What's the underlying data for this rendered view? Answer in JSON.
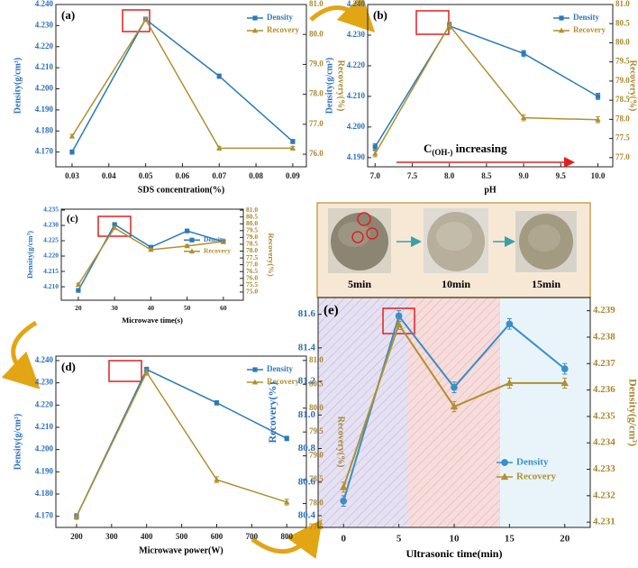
{
  "chart_data": [
    {
      "type": "line",
      "label": "(a)",
      "xlabel": "SDS concentration(%)",
      "ylabel": "Density(g/cm³)",
      "y2label": "Recovery(%)",
      "legend": "upper right",
      "ycolor": "#2a6ebb",
      "y2color": "#a8862c",
      "x": [
        0.03,
        0.05,
        0.07,
        0.09
      ],
      "xlim": [
        0.0256,
        0.0937
      ],
      "xticks": [
        0.03,
        0.04,
        0.05,
        0.06,
        0.07,
        0.08,
        0.09
      ],
      "ylim": [
        4.163,
        4.24
      ],
      "yticks": [
        {
          "value": 4.17,
          "label": "4.170"
        },
        {
          "value": 4.18,
          "label": "4.180"
        },
        {
          "value": 4.19,
          "label": "4.190"
        },
        {
          "value": 4.2,
          "label": "4.200"
        },
        {
          "value": 4.21,
          "label": "4.210"
        },
        {
          "value": 4.22,
          "label": "4.220"
        },
        {
          "value": 4.23,
          "label": "4.230"
        },
        {
          "value": 4.24,
          "label": "4.240"
        }
      ],
      "y2lim": [
        75.58,
        81.0
      ],
      "y2ticks": [
        {
          "value": 76,
          "label": "76.0"
        },
        {
          "value": 77,
          "label": "77.0"
        },
        {
          "value": 78,
          "label": "78.0"
        },
        {
          "value": 79,
          "label": "79.0"
        },
        {
          "value": 80,
          "label": "80.0"
        },
        {
          "value": 81,
          "label": "81.0"
        }
      ],
      "series": [
        {
          "name": "Density",
          "color": "#2a7ab9",
          "marker": "square",
          "values": [
            4.17,
            4.233,
            4.206,
            4.175
          ],
          "errors": [
            0.001,
            0.001,
            0.001,
            0.001
          ]
        },
        {
          "name": "Recovery",
          "color": "#b0902f",
          "marker": "triangle",
          "axis": "y2",
          "values": [
            76.6,
            80.5,
            76.2,
            76.2
          ],
          "errors": [
            0.06,
            0.06,
            0.06,
            0.06
          ]
        }
      ]
    },
    {
      "type": "line",
      "label": "(b)",
      "xlabel": "pH",
      "ylabel": "Density(g/cm³)",
      "y2label": "Recovery(%)",
      "legend": "upper right",
      "ycolor": "#2a6ebb",
      "y2color": "#a8862c",
      "annotation": {
        "base": "C",
        "subscript": "(OH-)",
        "text": " increasing"
      },
      "x": [
        7,
        8,
        9,
        10
      ],
      "xlim": [
        6.9,
        10.2
      ],
      "xticks": [
        {
          "value": 7,
          "label": "7.0"
        },
        7.5,
        {
          "value": 8,
          "label": "8.0"
        },
        8.5,
        {
          "value": 9,
          "label": "9.0"
        },
        9.5,
        {
          "value": 10,
          "label": "10.0"
        }
      ],
      "ylim": [
        4.187,
        4.24
      ],
      "yticks": [
        {
          "value": 4.19,
          "label": "4.190"
        },
        {
          "value": 4.2,
          "label": "4.200"
        },
        {
          "value": 4.21,
          "label": "4.210"
        },
        {
          "value": 4.22,
          "label": "4.220"
        },
        {
          "value": 4.23,
          "label": "4.230"
        },
        {
          "value": 4.24,
          "label": "4.240"
        }
      ],
      "y2lim": [
        76.76,
        81.0
      ],
      "y2ticks": [
        {
          "value": 77,
          "label": "77.0"
        },
        77.5,
        {
          "value": 78,
          "label": "78.0"
        },
        78.5,
        {
          "value": 79,
          "label": "79.0"
        },
        79.5,
        {
          "value": 80,
          "label": "80.0"
        },
        80.5,
        {
          "value": 81,
          "label": "81.0"
        }
      ],
      "series": [
        {
          "name": "Density",
          "color": "#2a7ab9",
          "marker": "square",
          "values": [
            4.1935,
            4.233,
            4.224,
            4.21
          ],
          "errors": [
            0.001,
            0.001,
            0.001,
            0.001
          ]
        },
        {
          "name": "Recovery",
          "color": "#b0902f",
          "marker": "triangle",
          "axis": "y2",
          "values": [
            77.1,
            80.46,
            78.04,
            77.99
          ],
          "errors": [
            0.08,
            0.08,
            0.08,
            0.08
          ]
        }
      ]
    },
    {
      "type": "line",
      "label": "(c)",
      "xlabel": "Microwave time(s)",
      "ylabel": "Density(g/cm³)",
      "y2label": "Recovery(%)",
      "legend": "lower right",
      "ycolor": "#2a6ebb",
      "y2color": "#a8862c",
      "x": [
        20,
        30,
        40,
        50,
        60
      ],
      "xlim": [
        15.3,
        65.5
      ],
      "xticks": [
        20,
        30,
        40,
        50,
        60
      ],
      "ylim": [
        4.2056,
        4.2353
      ],
      "yticks": [
        {
          "value": 4.21,
          "label": "4.210"
        },
        4.215,
        {
          "value": 4.22,
          "label": "4.220"
        },
        4.225,
        {
          "value": 4.23,
          "label": "4.230"
        },
        4.235
      ],
      "y2lim": [
        74.4,
        81.07
      ],
      "y2ticks": [
        {
          "value": 75,
          "label": "75.0"
        },
        75.5,
        {
          "value": 76,
          "label": "76.0"
        },
        76.5,
        {
          "value": 77,
          "label": "77.0"
        },
        77.5,
        {
          "value": 78,
          "label": "78.0"
        },
        78.5,
        {
          "value": 79,
          "label": "79.0"
        },
        79.5,
        {
          "value": 80,
          "label": "80.0"
        },
        80.5,
        {
          "value": 81,
          "label": "81.0"
        }
      ],
      "series": [
        {
          "name": "Density",
          "color": "#2a7ab9",
          "marker": "square",
          "values": [
            4.2088,
            4.2303,
            4.2229,
            4.2282,
            4.2247
          ],
          "errors": [
            0.0003,
            0.0003,
            0.0003,
            0.0003,
            0.0003
          ]
        },
        {
          "name": "Recovery",
          "color": "#b0902f",
          "marker": "triangle",
          "axis": "y2",
          "values": [
            75.54,
            79.7,
            78.1,
            78.37,
            78.7
          ],
          "errors": [
            0.1,
            0.1,
            0.1,
            0.1,
            0.1
          ]
        }
      ]
    },
    {
      "type": "line",
      "label": "(d)",
      "xlabel": "Microwave power(W)",
      "ylabel": "Density(g/cm³)",
      "y2label": "Recovery(%)",
      "legend": "upper right",
      "ycolor": "#2a6ebb",
      "y2color": "#a8862c",
      "x": [
        200,
        400,
        600,
        800
      ],
      "xlim": [
        141,
        856
      ],
      "xticks": [
        200,
        300,
        400,
        500,
        600,
        700,
        800
      ],
      "ylim": [
        4.165,
        4.242
      ],
      "yticks": [
        {
          "value": 4.17,
          "label": "4.170"
        },
        {
          "value": 4.18,
          "label": "4.180"
        },
        {
          "value": 4.19,
          "label": "4.190"
        },
        {
          "value": 4.2,
          "label": "4.200"
        },
        {
          "value": 4.21,
          "label": "4.210"
        },
        {
          "value": 4.22,
          "label": "4.220"
        },
        {
          "value": 4.23,
          "label": "4.230"
        },
        {
          "value": 4.24,
          "label": "4.240"
        }
      ],
      "y2lim": [
        77.5,
        81.09
      ],
      "y2ticks": [
        77.5,
        {
          "value": 78,
          "label": "78.0"
        },
        78.5,
        {
          "value": 79,
          "label": "79.0"
        },
        79.5,
        {
          "value": 80,
          "label": "80.0"
        },
        80.5,
        {
          "value": 81,
          "label": "81.0"
        }
      ],
      "series": [
        {
          "name": "Density",
          "color": "#2a7ab9",
          "marker": "square",
          "values": [
            4.17,
            4.236,
            4.221,
            4.205
          ],
          "errors": [
            0.001,
            0.001,
            0.001,
            0.001
          ]
        },
        {
          "name": "Recovery",
          "color": "#b0902f",
          "marker": "triangle",
          "axis": "y2",
          "values": [
            77.73,
            80.75,
            78.5,
            78.03
          ],
          "errors": [
            0.06,
            0.06,
            0.06,
            0.06
          ]
        }
      ]
    },
    {
      "type": "line",
      "label": "(e)",
      "xlabel": "Ultrasonic time(min)",
      "ylabel": "Recovery(%)",
      "y2label": "Density(g/cm³)",
      "legend": "lower right",
      "ycolor": "#2a6ebb",
      "y2color": "#a8862c",
      "x": [
        0,
        5,
        10,
        15,
        20
      ],
      "xlim": [
        -2.3,
        22.3
      ],
      "xticks": [
        0,
        5,
        10,
        15,
        20
      ],
      "ylim": [
        80.33,
        81.7
      ],
      "yticks": [
        80.4,
        80.6,
        80.8,
        {
          "value": 81,
          "label": "81.0"
        },
        81.2,
        81.4,
        81.6
      ],
      "y2lim": [
        4.2308,
        4.2395
      ],
      "y2ticks": [
        4.231,
        4.232,
        4.233,
        4.234,
        4.235,
        4.236,
        4.237,
        4.238,
        4.239
      ],
      "series": [
        {
          "name": "Density",
          "color": "#3a8fc4",
          "marker": "circle",
          "axis": "y2",
          "values": [
            4.2318,
            4.2388,
            4.2361,
            4.2385,
            4.2368
          ],
          "errors": [
            0.0002,
            0.0002,
            0.0002,
            0.0002,
            0.0002
          ]
        },
        {
          "name": "Recovery",
          "color": "#b0902f",
          "marker": "triangle",
          "values": [
            80.57,
            81.54,
            81.05,
            81.19,
            81.19
          ],
          "errors": [
            0.03,
            0.03,
            0.03,
            0.03,
            0.03
          ]
        }
      ]
    }
  ],
  "photos": [
    {
      "label": "5min"
    },
    {
      "label": "10min"
    },
    {
      "label": "15min"
    }
  ]
}
